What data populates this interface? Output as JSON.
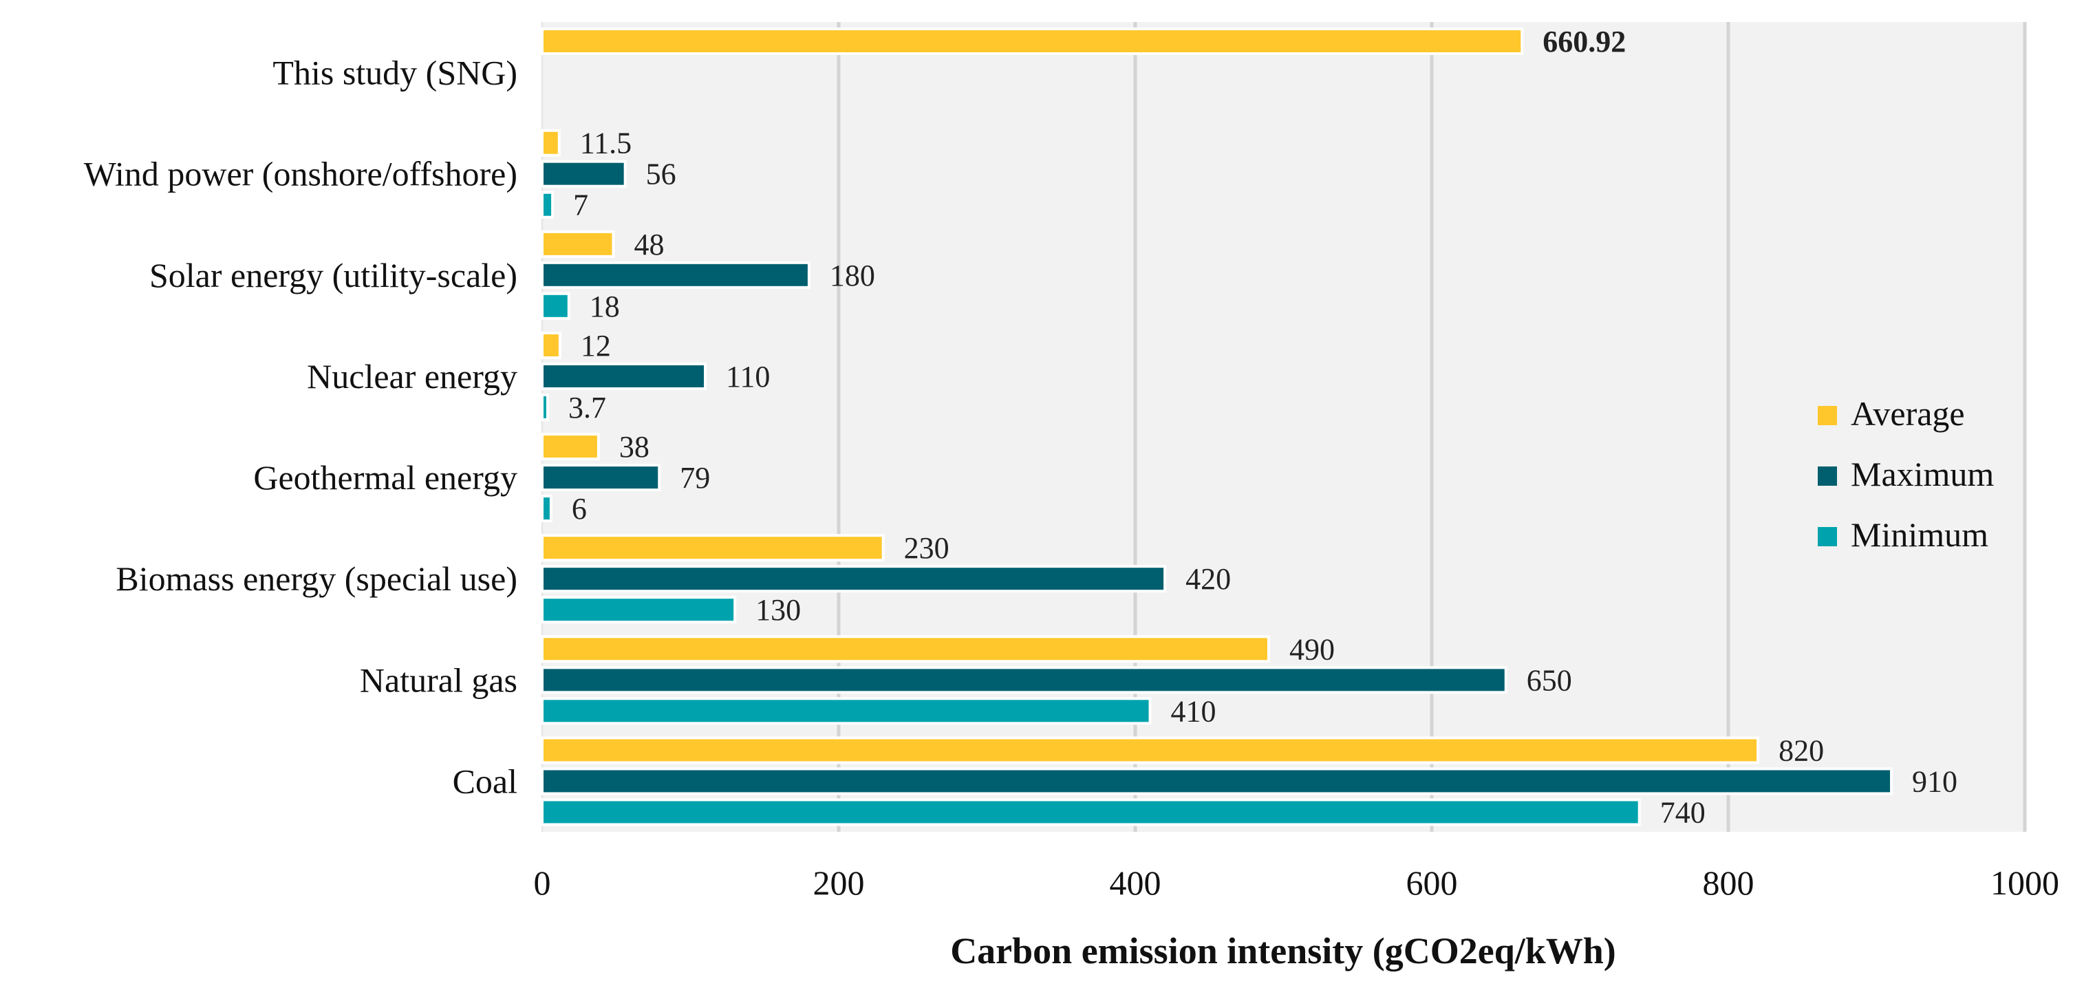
{
  "chart_data": {
    "type": "bar",
    "orientation": "horizontal",
    "title": "",
    "xlabel": "Carbon emission intensity (gCO2eq/kWh)",
    "ylabel": "",
    "xlim": [
      0,
      1000
    ],
    "xticks": [
      0,
      200,
      400,
      600,
      800,
      1000
    ],
    "grid": true,
    "legend_position": "right",
    "colors": {
      "Average": "#FFC72C",
      "Maximum": "#005F6E",
      "Minimum": "#00A3AD",
      "background": "#F2F2F2",
      "grid": "#D4D4D4"
    },
    "categories": [
      "This study (SNG)",
      "Wind power (onshore/offshore)",
      "Solar energy (utility-scale)",
      "Nuclear energy",
      "Geothermal energy",
      "Biomass energy (special use)",
      "Natural gas",
      "Coal"
    ],
    "series": [
      {
        "name": "Average",
        "values": [
          660.92,
          11.5,
          48,
          12,
          38,
          230,
          490,
          820
        ],
        "labels": [
          "660.92",
          "11.5",
          "48",
          "12",
          "38",
          "230",
          "490",
          "820"
        ]
      },
      {
        "name": "Maximum",
        "values": [
          null,
          56,
          180,
          110,
          79,
          420,
          650,
          910
        ],
        "labels": [
          "",
          "56",
          "180",
          "110",
          "79",
          "420",
          "650",
          "910"
        ]
      },
      {
        "name": "Minimum",
        "values": [
          null,
          7,
          18,
          3.7,
          6,
          130,
          410,
          740
        ],
        "labels": [
          "",
          "7",
          "18",
          "3.7",
          "6",
          "130",
          "410",
          "740"
        ]
      }
    ],
    "legend": [
      "Average",
      "Maximum",
      "Minimum"
    ]
  }
}
